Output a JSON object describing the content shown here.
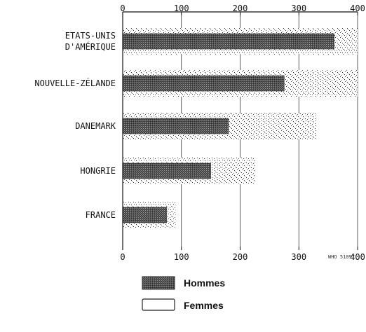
{
  "chart_data": {
    "type": "bar",
    "orientation": "horizontal",
    "categories": [
      "ETATS-UNIS\nD'AMÉRIQUE",
      "NOUVELLE-ZÉLANDE",
      "DANEMARK",
      "HONGRIE",
      "FRANCE"
    ],
    "series": [
      {
        "name": "Hommes",
        "values": [
          360,
          275,
          180,
          150,
          75
        ],
        "color": "#555555",
        "pattern": "dark-hatch"
      },
      {
        "name": "Femmes",
        "values": [
          400,
          400,
          330,
          225,
          90
        ],
        "color": "#ffffff",
        "pattern": "light-stipple"
      }
    ],
    "xticks": [
      "0",
      "100",
      "200",
      "300",
      "400"
    ],
    "xlim": [
      0,
      400
    ],
    "grid": true,
    "legend": "bottom",
    "annotations": [
      "WHO 51097"
    ]
  }
}
